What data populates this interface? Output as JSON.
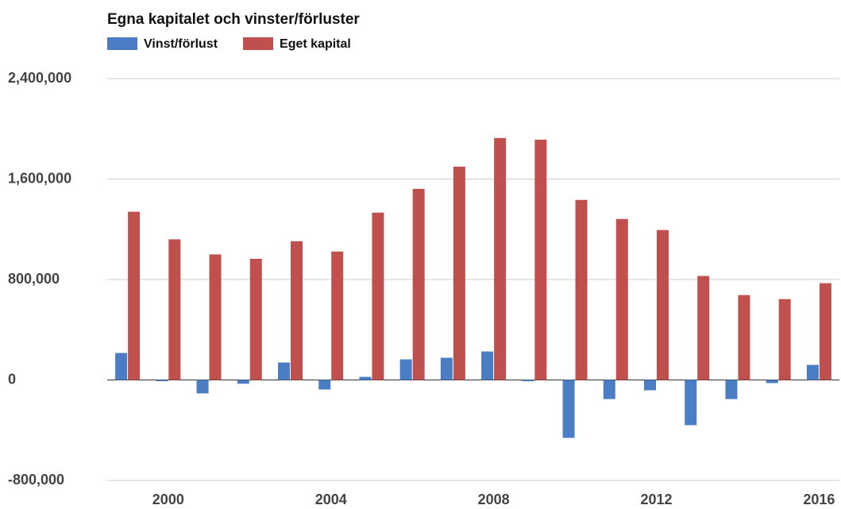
{
  "chart_data": {
    "type": "bar",
    "title": "Egna kapitalet och vinster/förluster",
    "categories": [
      null,
      "2000",
      null,
      null,
      null,
      "2004",
      null,
      null,
      null,
      "2008",
      null,
      null,
      null,
      "2012",
      null,
      null,
      null,
      "2016"
    ],
    "series": [
      {
        "name": "Vinst/förlust",
        "color": "#4a7dc4",
        "values": [
          215000,
          -10000,
          -107000,
          -30000,
          139000,
          -76000,
          25000,
          164000,
          177000,
          227000,
          -10000,
          -461000,
          -152000,
          -82000,
          -360000,
          -152000,
          -25000,
          120000
        ]
      },
      {
        "name": "Eget kapital",
        "color": "#c0504d",
        "values": [
          1340000,
          1120000,
          1000000,
          965000,
          1105000,
          1023000,
          1333000,
          1522000,
          1699000,
          1927000,
          1914000,
          1434000,
          1282000,
          1194000,
          828000,
          676000,
          644000,
          771000
        ]
      }
    ],
    "ylim": [
      -800000,
      2400000
    ],
    "yticks": [
      {
        "value": -800000,
        "label": "-800,000"
      },
      0,
      {
        "value": 800000,
        "label": "800,000"
      },
      {
        "value": 1600000,
        "label": "1,600,000"
      },
      {
        "value": 2400000,
        "label": "2,400,000"
      }
    ],
    "grid": true,
    "legend": "top-left"
  }
}
